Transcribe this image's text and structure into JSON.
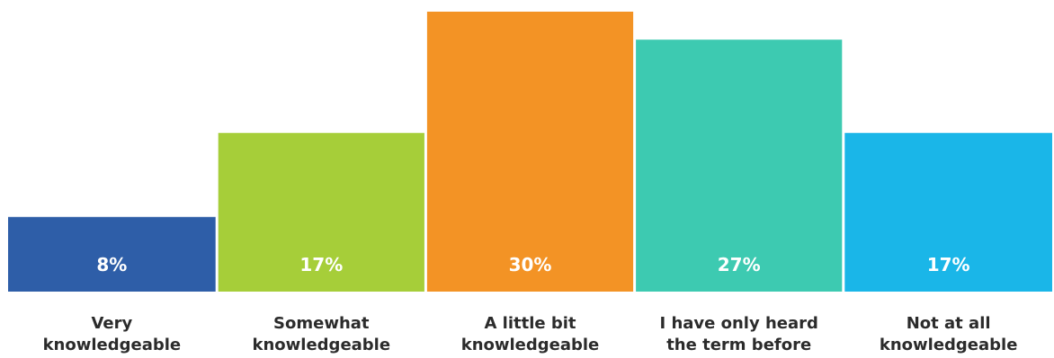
{
  "chart_data": {
    "type": "bar",
    "title": "",
    "xlabel": "",
    "ylabel": "",
    "ylim": [
      0,
      30
    ],
    "grid": false,
    "categories": [
      [
        "Very",
        "knowledgeable"
      ],
      [
        "Somewhat",
        "knowledgeable"
      ],
      [
        "A little bit",
        "knowledgeable"
      ],
      [
        "I have only heard",
        "the term before"
      ],
      [
        "Not at all",
        "knowledgeable"
      ]
    ],
    "values": [
      8,
      17,
      30,
      27,
      17
    ],
    "value_labels": [
      "8%",
      "17%",
      "30%",
      "27%",
      "17%"
    ],
    "colors": [
      "#2e5ea8",
      "#a6ce39",
      "#f39325",
      "#3dcab1",
      "#1ab6e8"
    ]
  }
}
